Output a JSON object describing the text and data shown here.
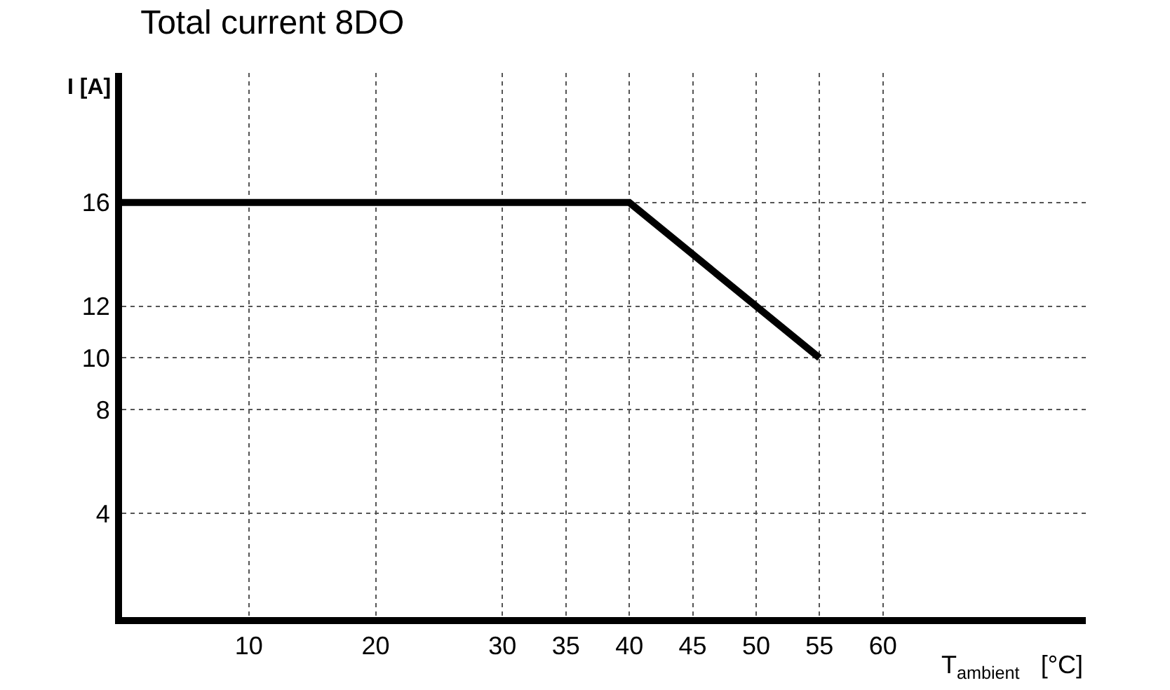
{
  "chart_data": {
    "type": "line",
    "title": "Total current 8DO",
    "xlabel": "T$_{ambient}$   [°C]",
    "ylabel": "I [A]",
    "x": [
      0,
      40,
      55
    ],
    "series": [
      {
        "color": "#000000",
        "values": [
          16,
          16,
          10
        ]
      }
    ],
    "xlim": [
      0,
      76
    ],
    "ylim": [
      0,
      21
    ],
    "xticks": [
      10,
      20,
      30,
      35,
      40,
      45,
      50,
      55,
      60
    ],
    "yticks": [
      4,
      8,
      10,
      12,
      16
    ],
    "grid": true,
    "marker": "none",
    "line_style": "solid",
    "legend": false
  }
}
